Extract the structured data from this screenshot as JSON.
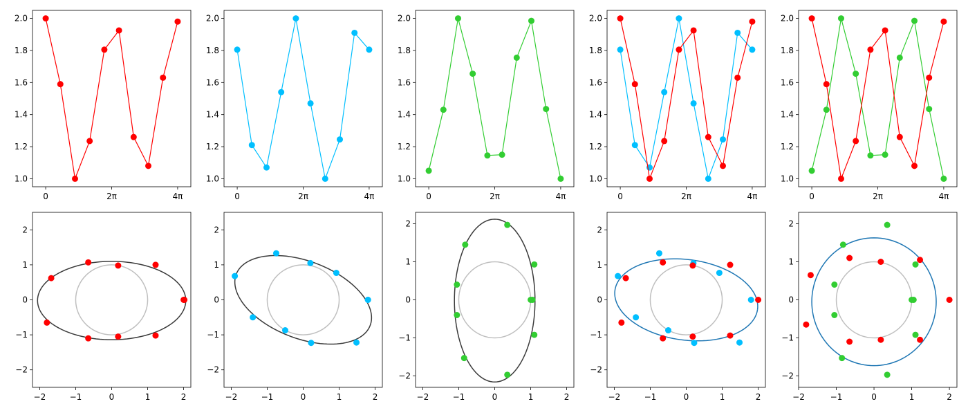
{
  "colors": {
    "red": "#ff0000",
    "cyan": "#00bfff",
    "green": "#32cd32",
    "fit_dark": "#3a3a3a",
    "fit_blue": "#1f77b4",
    "unit_circle": "#bfbfbf"
  },
  "chart_data": [
    {
      "type": "line",
      "xticks": [
        "0",
        "2π",
        "4π"
      ],
      "xlim": [
        -0.4,
        4.4
      ],
      "ylim": [
        0.95,
        2.05
      ],
      "yticks": [
        "1.0",
        "1.2",
        "1.4",
        "1.6",
        "1.8",
        "2.0"
      ],
      "series": [
        {
          "color": "red",
          "x": [
            0,
            0.444,
            0.889,
            1.333,
            1.778,
            2.222,
            2.667,
            3.111,
            3.556,
            4.0
          ],
          "y": [
            2.0,
            1.59,
            1.0,
            1.235,
            1.805,
            1.925,
            1.26,
            1.08,
            1.63,
            1.98
          ]
        }
      ]
    },
    {
      "type": "line",
      "xticks": [
        "0",
        "2π",
        "4π"
      ],
      "xlim": [
        -0.4,
        4.4
      ],
      "ylim": [
        0.95,
        2.05
      ],
      "yticks": [
        "1.0",
        "1.2",
        "1.4",
        "1.6",
        "1.8",
        "2.0"
      ],
      "series": [
        {
          "color": "cyan",
          "x": [
            0,
            0.444,
            0.889,
            1.333,
            1.778,
            2.222,
            2.667,
            3.111,
            3.556,
            4.0
          ],
          "y": [
            1.805,
            1.21,
            1.07,
            1.54,
            2.0,
            1.47,
            1.0,
            1.245,
            1.91,
            1.805
          ]
        }
      ]
    },
    {
      "type": "line",
      "xticks": [
        "0",
        "2π",
        "4π"
      ],
      "xlim": [
        -0.4,
        4.4
      ],
      "ylim": [
        0.95,
        2.05
      ],
      "yticks": [
        "1.0",
        "1.2",
        "1.4",
        "1.6",
        "1.8",
        "2.0"
      ],
      "series": [
        {
          "color": "green",
          "x": [
            0,
            0.444,
            0.889,
            1.333,
            1.778,
            2.222,
            2.667,
            3.111,
            3.556,
            4.0
          ],
          "y": [
            1.05,
            1.43,
            2.0,
            1.655,
            1.145,
            1.15,
            1.755,
            1.985,
            1.435,
            1.0
          ]
        }
      ]
    },
    {
      "type": "line",
      "xticks": [
        "0",
        "2π",
        "4π"
      ],
      "xlim": [
        -0.4,
        4.4
      ],
      "ylim": [
        0.95,
        2.05
      ],
      "yticks": [
        "1.0",
        "1.2",
        "1.4",
        "1.6",
        "1.8",
        "2.0"
      ],
      "series": [
        {
          "color": "cyan",
          "x": [
            0,
            0.444,
            0.889,
            1.333,
            1.778,
            2.222,
            2.667,
            3.111,
            3.556,
            4.0
          ],
          "y": [
            1.805,
            1.21,
            1.07,
            1.54,
            2.0,
            1.47,
            1.0,
            1.245,
            1.91,
            1.805
          ]
        },
        {
          "color": "red",
          "x": [
            0,
            0.444,
            0.889,
            1.333,
            1.778,
            2.222,
            2.667,
            3.111,
            3.556,
            4.0
          ],
          "y": [
            2.0,
            1.59,
            1.0,
            1.235,
            1.805,
            1.925,
            1.26,
            1.08,
            1.63,
            1.98
          ]
        }
      ]
    },
    {
      "type": "line",
      "xticks": [
        "0",
        "2π",
        "4π"
      ],
      "xlim": [
        -0.4,
        4.4
      ],
      "ylim": [
        0.95,
        2.05
      ],
      "yticks": [
        "1.0",
        "1.2",
        "1.4",
        "1.6",
        "1.8",
        "2.0"
      ],
      "series": [
        {
          "color": "green",
          "x": [
            0,
            0.444,
            0.889,
            1.333,
            1.778,
            2.222,
            2.667,
            3.111,
            3.556,
            4.0
          ],
          "y": [
            1.05,
            1.43,
            2.0,
            1.655,
            1.145,
            1.15,
            1.755,
            1.985,
            1.435,
            1.0
          ]
        },
        {
          "color": "red",
          "x": [
            0,
            0.444,
            0.889,
            1.333,
            1.778,
            2.222,
            2.667,
            3.111,
            3.556,
            4.0
          ],
          "y": [
            2.0,
            1.59,
            1.0,
            1.235,
            1.805,
            1.925,
            1.26,
            1.08,
            1.63,
            1.98
          ]
        }
      ]
    },
    {
      "type": "scatter",
      "xlim": [
        -2.2,
        2.2
      ],
      "ylim": [
        -2.5,
        2.5
      ],
      "xticks": [
        -2,
        -1,
        0,
        1,
        2
      ],
      "yticks": [
        -2,
        -1,
        0,
        1,
        2
      ],
      "unit_circle": true,
      "ellipse": {
        "color": "fit_dark",
        "cx": 0,
        "cy": -0.02,
        "a": 2.06,
        "b": 1.12,
        "angle_deg": 0
      },
      "points": [
        {
          "color": "red",
          "x": 2.0,
          "y": 0.0
        },
        {
          "color": "red",
          "x": 1.22,
          "y": 1.0
        },
        {
          "color": "red",
          "x": 0.18,
          "y": 0.98
        },
        {
          "color": "red",
          "x": -0.65,
          "y": 1.07
        },
        {
          "color": "red",
          "x": -1.68,
          "y": 0.62
        },
        {
          "color": "red",
          "x": -1.8,
          "y": -0.65
        },
        {
          "color": "red",
          "x": -0.65,
          "y": -1.1
        },
        {
          "color": "red",
          "x": 0.18,
          "y": -1.05
        },
        {
          "color": "red",
          "x": 1.22,
          "y": -1.02
        },
        {
          "color": "red",
          "x": 2.02,
          "y": 0.0
        }
      ]
    },
    {
      "type": "scatter",
      "xlim": [
        -2.2,
        2.2
      ],
      "ylim": [
        -2.5,
        2.5
      ],
      "xticks": [
        -2,
        -1,
        0,
        1,
        2
      ],
      "yticks": [
        -2,
        -1,
        0,
        1,
        2
      ],
      "unit_circle": true,
      "ellipse": {
        "color": "fit_dark",
        "cx": 0.0,
        "cy": 0.0,
        "a": 2.0,
        "b": 1.1,
        "angle_deg": -22
      },
      "points": [
        {
          "color": "cyan",
          "x": 1.8,
          "y": 0.0
        },
        {
          "color": "cyan",
          "x": 0.92,
          "y": 0.77
        },
        {
          "color": "cyan",
          "x": 0.2,
          "y": 1.05
        },
        {
          "color": "cyan",
          "x": -0.75,
          "y": 1.33
        },
        {
          "color": "cyan",
          "x": -1.9,
          "y": 0.68
        },
        {
          "color": "cyan",
          "x": -1.4,
          "y": -0.5
        },
        {
          "color": "cyan",
          "x": -0.5,
          "y": -0.87
        },
        {
          "color": "cyan",
          "x": 0.22,
          "y": -1.23
        },
        {
          "color": "cyan",
          "x": 1.48,
          "y": -1.22
        },
        {
          "color": "cyan",
          "x": 1.8,
          "y": 0.0
        }
      ]
    },
    {
      "type": "scatter",
      "xlim": [
        -2.2,
        2.2
      ],
      "ylim": [
        -2.3,
        2.3
      ],
      "xticks": [
        -2,
        -1,
        0,
        1,
        2
      ],
      "yticks": [
        -2,
        -1,
        0,
        1,
        2
      ],
      "unit_circle": true,
      "ellipse": {
        "color": "fit_dark",
        "cx": 0,
        "cy": -0.02,
        "a": 1.12,
        "b": 2.14,
        "angle_deg": 0
      },
      "points": [
        {
          "color": "green",
          "x": 1.05,
          "y": 0.0
        },
        {
          "color": "green",
          "x": 1.1,
          "y": 0.93
        },
        {
          "color": "green",
          "x": 0.35,
          "y": 1.97
        },
        {
          "color": "green",
          "x": -0.82,
          "y": 1.45
        },
        {
          "color": "green",
          "x": -1.05,
          "y": 0.4
        },
        {
          "color": "green",
          "x": -1.05,
          "y": -0.4
        },
        {
          "color": "green",
          "x": -0.85,
          "y": -1.53
        },
        {
          "color": "green",
          "x": 0.35,
          "y": -1.97
        },
        {
          "color": "green",
          "x": 1.1,
          "y": -0.92
        },
        {
          "color": "green",
          "x": 1.0,
          "y": 0.0
        }
      ]
    },
    {
      "type": "scatter",
      "xlim": [
        -2.2,
        2.2
      ],
      "ylim": [
        -2.5,
        2.5
      ],
      "xticks": [
        -2,
        -1,
        0,
        1,
        2
      ],
      "yticks": [
        -2,
        -1,
        0,
        1,
        2
      ],
      "unit_circle": true,
      "ellipse": {
        "color": "fit_blue",
        "cx": 0.0,
        "cy": 0.0,
        "a": 2.0,
        "b": 1.15,
        "angle_deg": -8
      },
      "points": [
        {
          "color": "cyan",
          "x": 1.8,
          "y": 0.0
        },
        {
          "color": "cyan",
          "x": 0.92,
          "y": 0.77
        },
        {
          "color": "cyan",
          "x": 0.2,
          "y": 1.05
        },
        {
          "color": "cyan",
          "x": -0.75,
          "y": 1.33
        },
        {
          "color": "cyan",
          "x": -1.9,
          "y": 0.68
        },
        {
          "color": "cyan",
          "x": -1.4,
          "y": -0.5
        },
        {
          "color": "cyan",
          "x": -0.5,
          "y": -0.87
        },
        {
          "color": "cyan",
          "x": 0.22,
          "y": -1.23
        },
        {
          "color": "cyan",
          "x": 1.48,
          "y": -1.22
        },
        {
          "color": "red",
          "x": 2.0,
          "y": 0.0
        },
        {
          "color": "red",
          "x": 1.22,
          "y": 1.0
        },
        {
          "color": "red",
          "x": 0.18,
          "y": 0.98
        },
        {
          "color": "red",
          "x": -0.65,
          "y": 1.07
        },
        {
          "color": "red",
          "x": -1.68,
          "y": 0.62
        },
        {
          "color": "red",
          "x": -1.8,
          "y": -0.65
        },
        {
          "color": "red",
          "x": -0.65,
          "y": -1.1
        },
        {
          "color": "red",
          "x": 0.18,
          "y": -1.05
        },
        {
          "color": "red",
          "x": 1.22,
          "y": -1.02
        }
      ]
    },
    {
      "type": "scatter",
      "xlim": [
        -2.0,
        2.2
      ],
      "ylim": [
        -2.3,
        2.3
      ],
      "xticks": [
        -2,
        -1,
        0,
        1,
        2
      ],
      "yticks": [
        -2,
        -1,
        0,
        1,
        2
      ],
      "unit_circle": true,
      "ellipse": {
        "color": "fit_blue",
        "cx": 0.0,
        "cy": -0.05,
        "a": 1.65,
        "b": 1.68,
        "angle_deg": 0
      },
      "points": [
        {
          "color": "green",
          "x": 1.05,
          "y": 0.0
        },
        {
          "color": "green",
          "x": 1.1,
          "y": 0.93
        },
        {
          "color": "green",
          "x": 0.35,
          "y": 1.97
        },
        {
          "color": "green",
          "x": -0.82,
          "y": 1.45
        },
        {
          "color": "green",
          "x": -1.05,
          "y": 0.4
        },
        {
          "color": "green",
          "x": -1.05,
          "y": -0.4
        },
        {
          "color": "green",
          "x": -0.85,
          "y": -1.53
        },
        {
          "color": "green",
          "x": 0.35,
          "y": -1.97
        },
        {
          "color": "green",
          "x": 1.1,
          "y": -0.92
        },
        {
          "color": "green",
          "x": 1.0,
          "y": 0.0
        },
        {
          "color": "red",
          "x": 2.0,
          "y": 0.0
        },
        {
          "color": "red",
          "x": 1.22,
          "y": 1.05
        },
        {
          "color": "red",
          "x": 0.18,
          "y": 1.0
        },
        {
          "color": "red",
          "x": -0.65,
          "y": 1.1
        },
        {
          "color": "red",
          "x": -1.68,
          "y": 0.65
        },
        {
          "color": "red",
          "x": -1.8,
          "y": -0.65
        },
        {
          "color": "red",
          "x": -0.65,
          "y": -1.1
        },
        {
          "color": "red",
          "x": 0.18,
          "y": -1.05
        },
        {
          "color": "red",
          "x": 1.22,
          "y": -1.05
        }
      ]
    }
  ]
}
